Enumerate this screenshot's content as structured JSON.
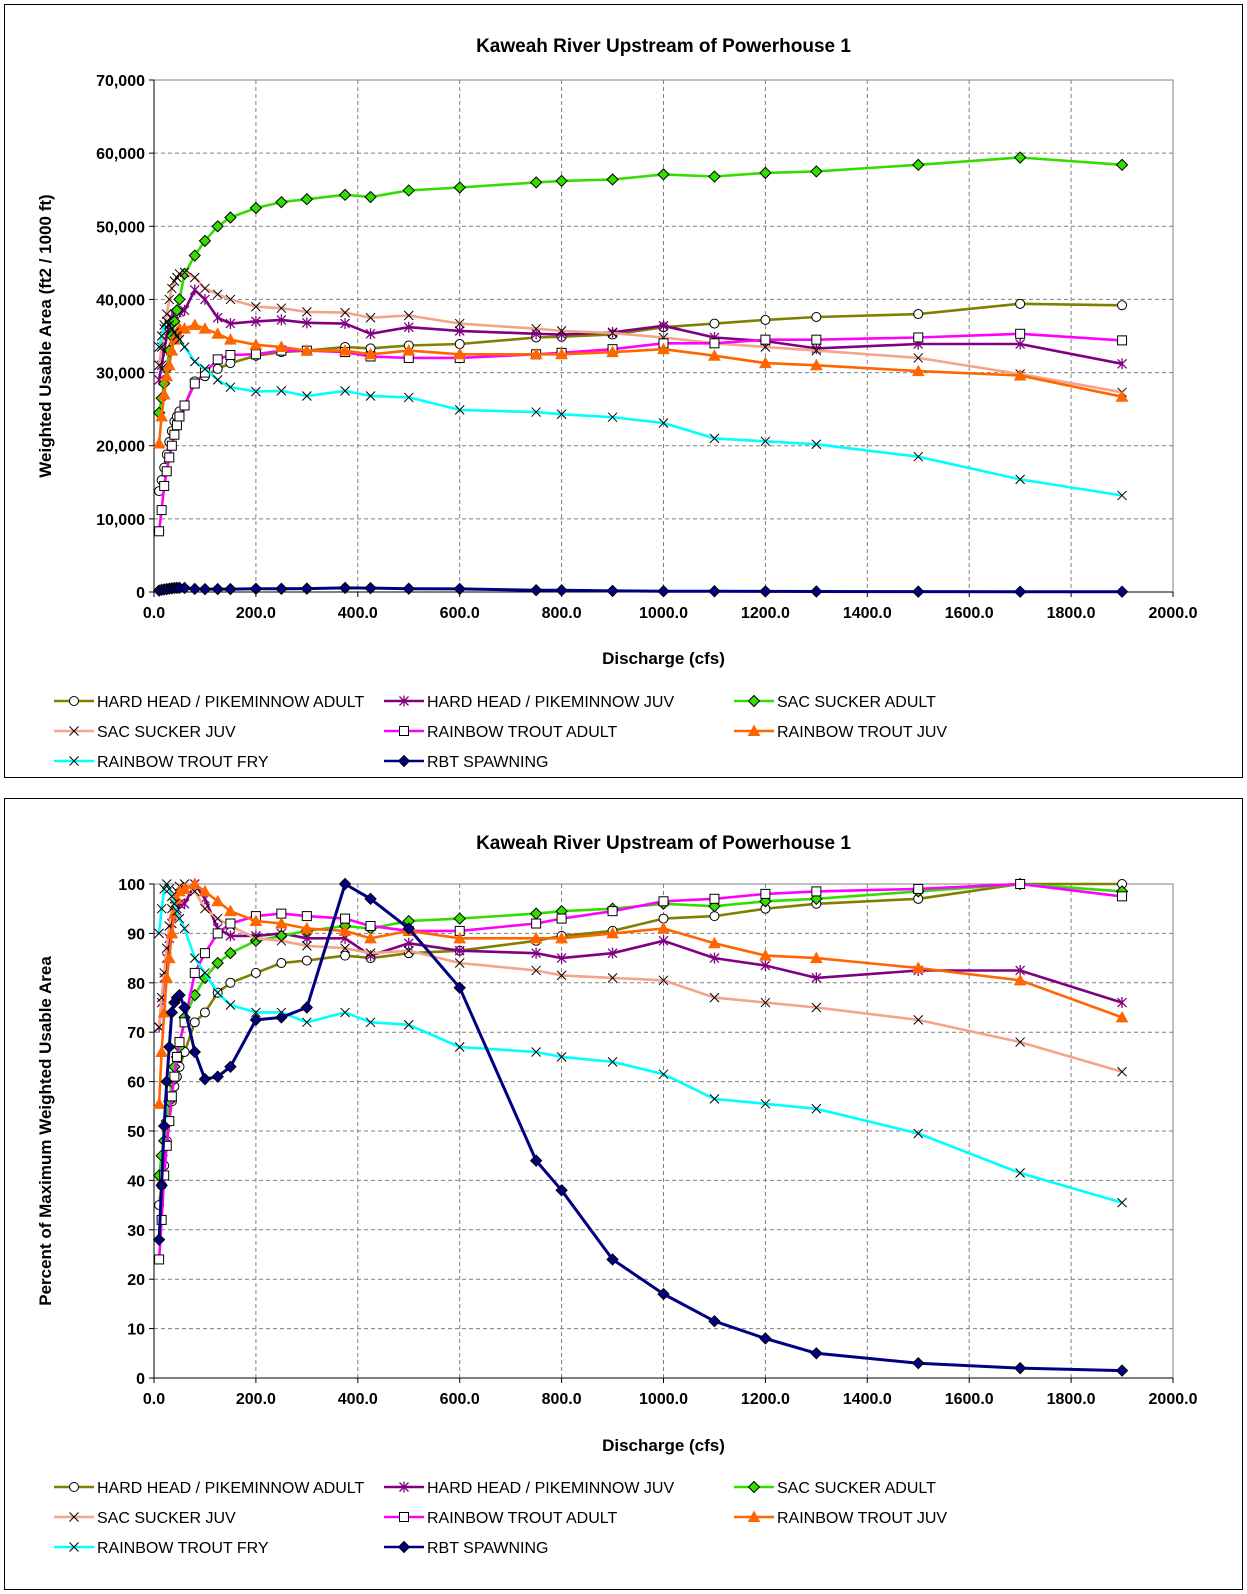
{
  "chart_data": [
    {
      "type": "line",
      "title": "Kaweah River Upstream of Powerhouse 1",
      "xlabel": "Discharge (cfs)",
      "ylabel": "Weighted Usable Area (ft2 / 1000 ft)",
      "xlim": [
        0,
        2000
      ],
      "ylim": [
        0,
        70000
      ],
      "xticks": [
        "0.0",
        "200.0",
        "400.0",
        "600.0",
        "800.0",
        "1000.0",
        "1200.0",
        "1400.0",
        "1600.0",
        "1800.0",
        "2000.0"
      ],
      "yticks": [
        "0",
        "10,000",
        "20,000",
        "30,000",
        "40,000",
        "50,000",
        "60,000",
        "70,000"
      ],
      "grid": true,
      "legend_position": "bottom",
      "x": [
        10,
        15,
        20,
        25,
        30,
        35,
        40,
        45,
        50,
        60,
        80,
        100,
        125,
        150,
        200,
        250,
        300,
        375,
        425,
        500,
        600,
        750,
        800,
        900,
        1000,
        1100,
        1200,
        1300,
        1500,
        1700,
        1900
      ],
      "series": [
        {
          "name": "HARD HEAD / PIKEMINNOW ADULT",
          "color": "#808000",
          "marker": "circle",
          "values": [
            13800,
            15300,
            17000,
            18800,
            20500,
            22000,
            23300,
            24000,
            24700,
            25500,
            28800,
            29500,
            30500,
            31300,
            32300,
            32800,
            33000,
            33500,
            33300,
            33700,
            33900,
            34800,
            34900,
            35200,
            36200,
            36700,
            37200,
            37600,
            38000,
            39400,
            39200
          ]
        },
        {
          "name": "HARD HEAD / PIKEMINNOW JUV",
          "color": "#800080",
          "marker": "star",
          "values": [
            29000,
            31000,
            33000,
            35000,
            36500,
            37500,
            38000,
            38200,
            38300,
            38500,
            41300,
            40000,
            37500,
            36700,
            37000,
            37200,
            36800,
            36700,
            35300,
            36200,
            35700,
            35300,
            35200,
            35500,
            36400,
            34800,
            34300,
            33300,
            33900,
            33900,
            31200
          ]
        },
        {
          "name": "SAC SUCKER ADULT",
          "color": "#33dd00",
          "marker": "diamond",
          "values": [
            24500,
            26500,
            28500,
            30500,
            33000,
            35000,
            37000,
            38500,
            40000,
            43500,
            46000,
            48000,
            50000,
            51200,
            52500,
            53300,
            53700,
            54300,
            54000,
            54900,
            55300,
            56000,
            56200,
            56400,
            57100,
            56800,
            57300,
            57500,
            58400,
            59400,
            58400
          ]
        },
        {
          "name": "SAC SUCKER JUV",
          "color": "#f4a48a",
          "marker": "x",
          "values": [
            31000,
            33500,
            36000,
            38000,
            40000,
            41500,
            42500,
            43000,
            43500,
            43700,
            43000,
            41500,
            40700,
            40000,
            39000,
            38800,
            38300,
            38200,
            37500,
            37800,
            36700,
            36000,
            35700,
            35400,
            34800,
            34000,
            33500,
            33000,
            32000,
            29800,
            27300
          ]
        },
        {
          "name": "RAINBOW TROUT ADULT",
          "color": "#ff00ff",
          "marker": "square",
          "values": [
            8300,
            11200,
            14500,
            16500,
            18400,
            20000,
            21500,
            22800,
            24000,
            25500,
            28500,
            30000,
            31800,
            32400,
            32500,
            33000,
            33000,
            32800,
            32200,
            32000,
            32000,
            32500,
            32700,
            33200,
            34000,
            34000,
            34500,
            34500,
            34800,
            35300,
            34400
          ]
        },
        {
          "name": "RAINBOW TROUT JUV",
          "color": "#ff6600",
          "marker": "triangle",
          "values": [
            20300,
            24000,
            27000,
            29500,
            31000,
            33000,
            34500,
            35500,
            36000,
            36000,
            36500,
            36000,
            35300,
            34500,
            33800,
            33500,
            33000,
            33000,
            32500,
            33000,
            32500,
            32500,
            32500,
            32800,
            33200,
            32300,
            31300,
            31000,
            30200,
            29600,
            26700
          ]
        },
        {
          "name": "RAINBOW TROUT FRY",
          "color": "#00ffff",
          "marker": "x",
          "values": [
            33500,
            35000,
            36500,
            37000,
            36500,
            36000,
            35500,
            35000,
            34500,
            33500,
            31500,
            30500,
            29000,
            28000,
            27400,
            27500,
            26800,
            27500,
            26800,
            26600,
            24900,
            24600,
            24300,
            23900,
            23100,
            21000,
            20600,
            20200,
            18500,
            15400,
            13200
          ]
        },
        {
          "name": "RBT SPAWNING",
          "color": "#000080",
          "marker": "diamond",
          "values": [
            200,
            300,
            350,
            400,
            450,
            500,
            550,
            570,
            570,
            550,
            420,
            390,
            400,
            400,
            440,
            440,
            460,
            560,
            530,
            450,
            420,
            250,
            230,
            150,
            110,
            100,
            80,
            70,
            50,
            40,
            40
          ]
        }
      ]
    },
    {
      "type": "line",
      "title": "Kaweah River Upstream of Powerhouse 1",
      "xlabel": "Discharge (cfs)",
      "ylabel": "Percent of Maximum Weighted Usable Area",
      "xlim": [
        0,
        2000
      ],
      "ylim": [
        0,
        100
      ],
      "xticks": [
        "0.0",
        "200.0",
        "400.0",
        "600.0",
        "800.0",
        "1000.0",
        "1200.0",
        "1400.0",
        "1600.0",
        "1800.0",
        "2000.0"
      ],
      "yticks": [
        "0",
        "10",
        "20",
        "30",
        "40",
        "50",
        "60",
        "70",
        "80",
        "90",
        "100"
      ],
      "grid": true,
      "legend_position": "bottom",
      "x": [
        10,
        15,
        20,
        25,
        30,
        35,
        40,
        45,
        50,
        60,
        80,
        100,
        125,
        150,
        200,
        250,
        300,
        375,
        425,
        500,
        600,
        750,
        800,
        900,
        1000,
        1100,
        1200,
        1300,
        1500,
        1700,
        1900
      ],
      "series": [
        {
          "name": "HARD HEAD / PIKEMINNOW ADULT",
          "color": "#808000",
          "marker": "circle",
          "values": [
            35,
            39,
            43,
            48,
            52,
            56,
            59,
            61,
            63,
            66,
            72,
            74,
            78,
            80,
            82,
            84,
            84.5,
            85.5,
            85,
            86,
            86.5,
            88.5,
            89.5,
            90.5,
            93,
            93.5,
            95,
            96,
            97,
            100,
            100
          ]
        },
        {
          "name": "HARD HEAD / PIKEMINNOW JUV",
          "color": "#800080",
          "marker": "star",
          "values": [
            71,
            76,
            81,
            85,
            89,
            92,
            94,
            95,
            96,
            96,
            100,
            97,
            91,
            89.5,
            89.5,
            90,
            89,
            89,
            85.5,
            88,
            86.5,
            86,
            85,
            86,
            88.5,
            85,
            83.5,
            81,
            82.5,
            82.5,
            76
          ]
        },
        {
          "name": "SAC SUCKER ADULT",
          "color": "#33dd00",
          "marker": "diamond",
          "values": [
            41,
            45,
            48,
            52,
            56,
            60,
            63,
            65,
            67,
            73,
            77.5,
            81,
            84,
            86,
            88.5,
            89.5,
            90.5,
            91.5,
            91,
            92.5,
            93,
            94,
            94.5,
            95,
            96,
            95.5,
            96.5,
            97,
            98.5,
            100,
            98.5
          ]
        },
        {
          "name": "SAC SUCKER JUV",
          "color": "#f4a48a",
          "marker": "x",
          "values": [
            71,
            77,
            82,
            87,
            91.5,
            95,
            97,
            98.5,
            99.5,
            100,
            98.5,
            95,
            93,
            91.5,
            89,
            88.5,
            87.5,
            87,
            86,
            86.5,
            84,
            82.5,
            81.5,
            81,
            80.5,
            77,
            76,
            75,
            72.5,
            68,
            62
          ]
        },
        {
          "name": "RAINBOW TROUT ADULT",
          "color": "#ff00ff",
          "marker": "square",
          "values": [
            24,
            32,
            41,
            47,
            52,
            57,
            61,
            65,
            68,
            72,
            82,
            86,
            90,
            92,
            93.5,
            94,
            93.5,
            93,
            91.5,
            90.5,
            90.5,
            92,
            93,
            94.5,
            96.5,
            97,
            98,
            98.5,
            99,
            100,
            97.5
          ]
        },
        {
          "name": "RAINBOW TROUT JUV",
          "color": "#ff6600",
          "marker": "triangle",
          "values": [
            55.5,
            66,
            74,
            81,
            85,
            90,
            94,
            97,
            98.5,
            99,
            100,
            98.5,
            96.5,
            94.5,
            92.5,
            92,
            91,
            90.5,
            89,
            90.5,
            89,
            89,
            89,
            90,
            91,
            88,
            85.5,
            85,
            83,
            80.5,
            73
          ]
        },
        {
          "name": "RAINBOW TROUT FRY",
          "color": "#00ffff",
          "marker": "x",
          "values": [
            90,
            95,
            99,
            100,
            99,
            97.5,
            96,
            94.5,
            93,
            91,
            85,
            82,
            78,
            75.5,
            74,
            74,
            72,
            74,
            72,
            71.5,
            67,
            66,
            65,
            64,
            61.5,
            56.5,
            55.5,
            54.5,
            49.5,
            41.5,
            35.5
          ]
        },
        {
          "name": "RBT SPAWNING",
          "color": "#000080",
          "marker": "diamond",
          "values": [
            28,
            39,
            51,
            60,
            67,
            74,
            76,
            77,
            77.5,
            75,
            66,
            60.5,
            61,
            63,
            72.5,
            73,
            75,
            100,
            97,
            91,
            79,
            44,
            38,
            24,
            17,
            11.5,
            8,
            5,
            3,
            2,
            1.5
          ]
        }
      ]
    }
  ]
}
